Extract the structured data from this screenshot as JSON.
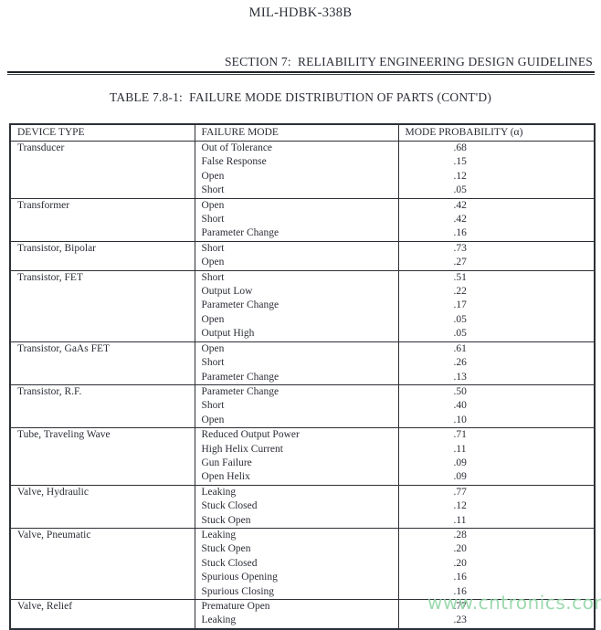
{
  "page": {
    "doc_number": "MIL-HDBK-338B",
    "section_heading": "SECTION 7:  RELIABILITY ENGINEERING DESIGN GUIDELINES",
    "table_title": "TABLE 7.8-1:  FAILURE MODE DISTRIBUTION OF PARTS (CONT'D)"
  },
  "table": {
    "columns": [
      "DEVICE TYPE",
      "FAILURE MODE",
      "MODE PROBABILITY (α)"
    ],
    "groups": [
      {
        "device": "Transducer",
        "modes": [
          {
            "mode": "Out of Tolerance",
            "probability": ".68"
          },
          {
            "mode": "False Response",
            "probability": ".15"
          },
          {
            "mode": "Open",
            "probability": ".12"
          },
          {
            "mode": "Short",
            "probability": ".05"
          }
        ]
      },
      {
        "device": "Transformer",
        "modes": [
          {
            "mode": "Open",
            "probability": ".42"
          },
          {
            "mode": "Short",
            "probability": ".42"
          },
          {
            "mode": "Parameter Change",
            "probability": ".16"
          }
        ]
      },
      {
        "device": "Transistor, Bipolar",
        "modes": [
          {
            "mode": "Short",
            "probability": ".73"
          },
          {
            "mode": "Open",
            "probability": ".27"
          }
        ]
      },
      {
        "device": "Transistor, FET",
        "modes": [
          {
            "mode": "Short",
            "probability": ".51"
          },
          {
            "mode": "Output Low",
            "probability": ".22"
          },
          {
            "mode": "Parameter Change",
            "probability": ".17"
          },
          {
            "mode": "Open",
            "probability": ".05"
          },
          {
            "mode": "Output High",
            "probability": ".05"
          }
        ]
      },
      {
        "device": "Transistor, GaAs FET",
        "modes": [
          {
            "mode": "Open",
            "probability": ".61"
          },
          {
            "mode": "Short",
            "probability": ".26"
          },
          {
            "mode": "Parameter Change",
            "probability": ".13"
          }
        ]
      },
      {
        "device": "Transistor, R.F.",
        "modes": [
          {
            "mode": "Parameter Change",
            "probability": ".50"
          },
          {
            "mode": "Short",
            "probability": ".40"
          },
          {
            "mode": "Open",
            "probability": ".10"
          }
        ]
      },
      {
        "device": "Tube, Traveling Wave",
        "modes": [
          {
            "mode": "Reduced Output Power",
            "probability": ".71"
          },
          {
            "mode": "High Helix Current",
            "probability": ".11"
          },
          {
            "mode": "Gun Failure",
            "probability": ".09"
          },
          {
            "mode": "Open Helix",
            "probability": ".09"
          }
        ]
      },
      {
        "device": "Valve, Hydraulic",
        "modes": [
          {
            "mode": "Leaking",
            "probability": ".77"
          },
          {
            "mode": "Stuck Closed",
            "probability": ".12"
          },
          {
            "mode": "Stuck Open",
            "probability": ".11"
          }
        ]
      },
      {
        "device": "Valve, Pneumatic",
        "modes": [
          {
            "mode": "Leaking",
            "probability": ".28"
          },
          {
            "mode": "Stuck Open",
            "probability": ".20"
          },
          {
            "mode": "Stuck Closed",
            "probability": ".20"
          },
          {
            "mode": "Spurious Opening",
            "probability": ".16"
          },
          {
            "mode": "Spurious Closing",
            "probability": ".16"
          }
        ]
      },
      {
        "device": "Valve, Relief",
        "modes": [
          {
            "mode": "Premature Open",
            "probability": ".77"
          },
          {
            "mode": "Leaking",
            "probability": ".23"
          }
        ]
      }
    ]
  },
  "watermark": {
    "text": "www.cntronics.com",
    "color": "#8fd4a4"
  },
  "colors": {
    "text": "#2b2e36",
    "border": "#2c2f35",
    "background": "#ffffff"
  }
}
